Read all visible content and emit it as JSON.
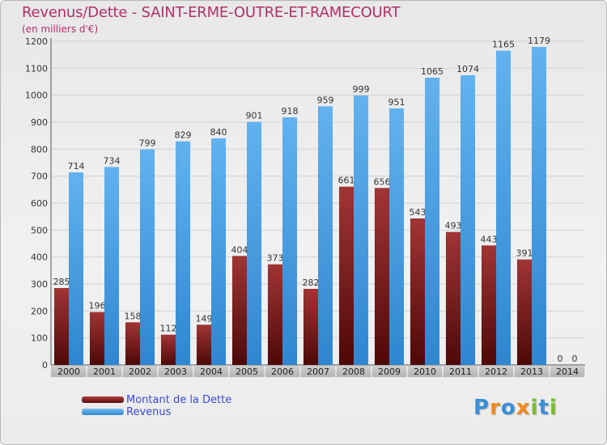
{
  "header": {
    "title": "Revenus/Dette - SAINT-ERME-OUTRE-ET-RAMECOURT",
    "subtitle": "(en milliers d'€)"
  },
  "legend": {
    "items": [
      {
        "label": "Montant de la Dette",
        "color": "#7a1f1f"
      },
      {
        "label": "Revenus",
        "color": "#4aa3e6"
      }
    ]
  },
  "logo": {
    "text": "Proxiti",
    "letters": [
      {
        "ch": "P",
        "color": "#3a8fd8"
      },
      {
        "ch": "r",
        "color": "#f08a1c"
      },
      {
        "ch": "o",
        "color": "#3a8fd8"
      },
      {
        "ch": "x",
        "color": "#f08a1c"
      },
      {
        "ch": "i",
        "color": "#7bbf2a"
      },
      {
        "ch": "t",
        "color": "#3a8fd8"
      },
      {
        "ch": "i",
        "color": "#7bbf2a"
      }
    ]
  },
  "chart_data": {
    "type": "bar",
    "title": "Revenus/Dette - SAINT-ERME-OUTRE-ET-RAMECOURT",
    "subtitle": "(en milliers d'€)",
    "categories": [
      "2000",
      "2001",
      "2002",
      "2003",
      "2004",
      "2005",
      "2006",
      "2007",
      "2008",
      "2009",
      "2010",
      "2011",
      "2012",
      "2013",
      "2014"
    ],
    "series": [
      {
        "name": "Montant de la Dette",
        "color": "#7a1f1f",
        "values": [
          285,
          196,
          158,
          112,
          149,
          404,
          373,
          282,
          661,
          656,
          543,
          493,
          443,
          391,
          0
        ]
      },
      {
        "name": "Revenus",
        "color": "#4aa3e6",
        "values": [
          714,
          734,
          799,
          829,
          840,
          901,
          918,
          959,
          999,
          951,
          1065,
          1074,
          1165,
          1179,
          0
        ]
      }
    ],
    "ylim": [
      0,
      1200
    ],
    "yticks": [
      0,
      100,
      200,
      300,
      400,
      500,
      600,
      700,
      800,
      900,
      1000,
      1100,
      1200
    ],
    "grid": true,
    "legend_position": "bottom-left"
  }
}
